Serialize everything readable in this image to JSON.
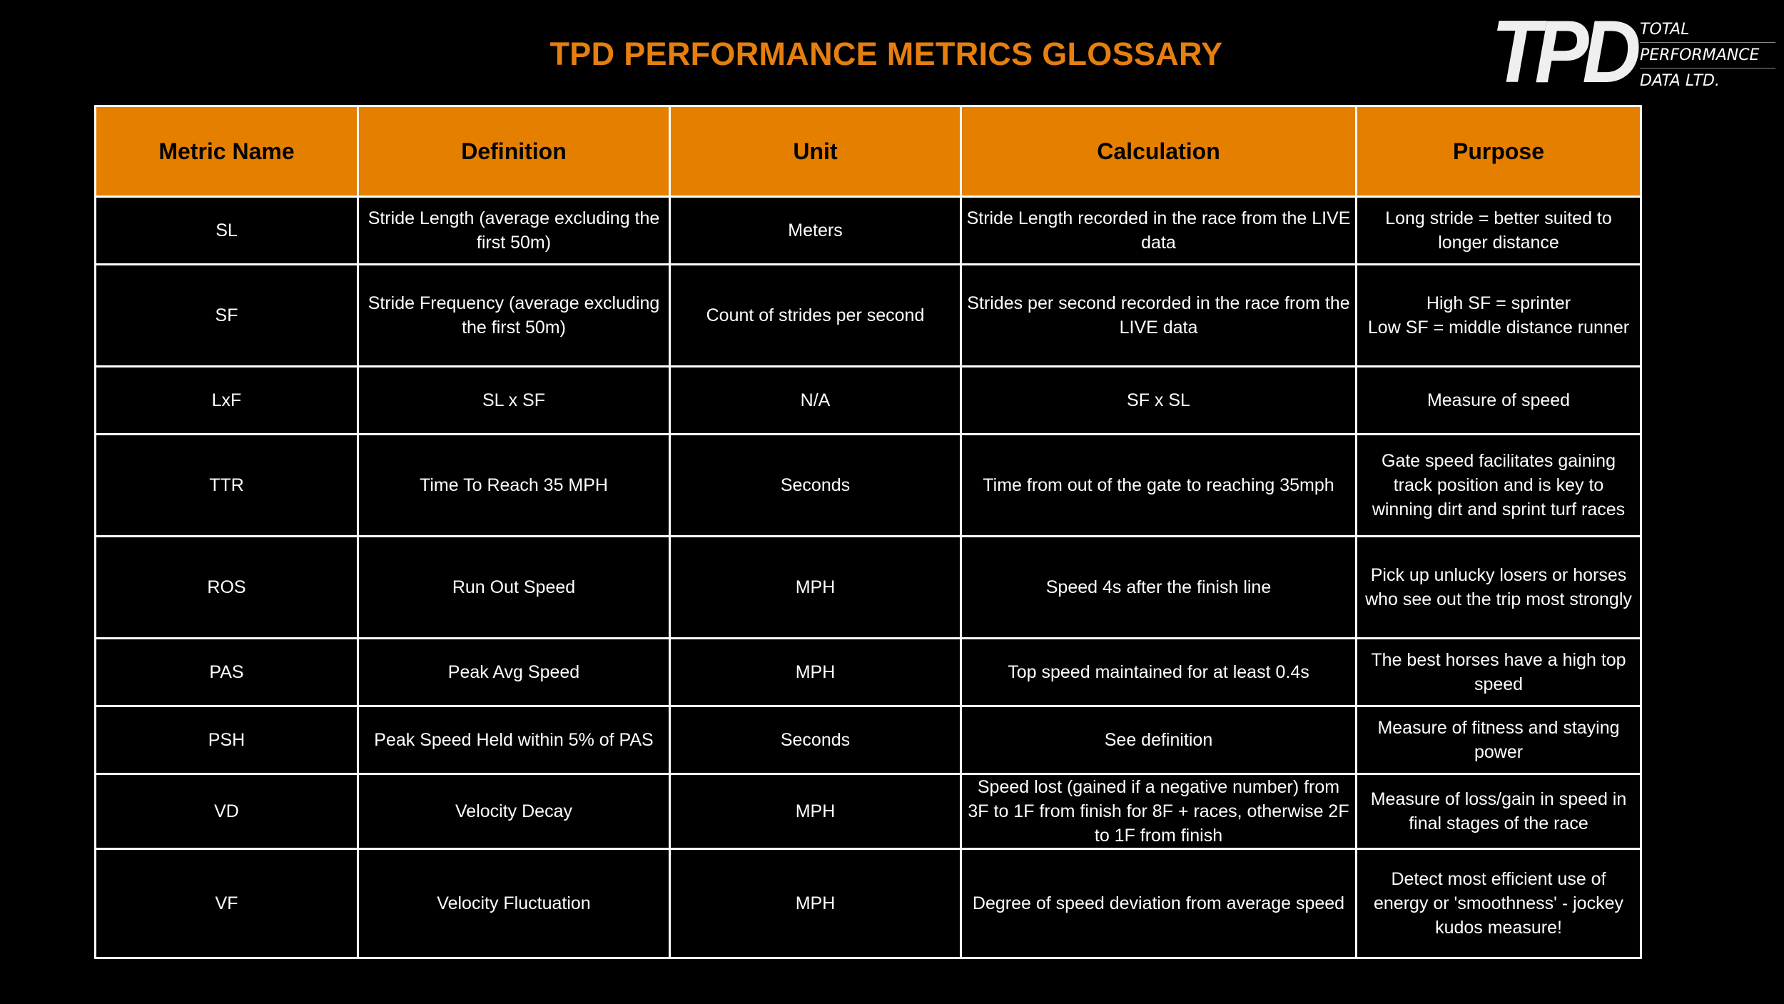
{
  "title": "TPD PERFORMANCE METRICS GLOSSARY",
  "logo": {
    "mark": "TPD",
    "lines": [
      "TOTAL",
      "PERFORMANCE",
      "DATA LTD."
    ]
  },
  "colors": {
    "accent": "#e57f00",
    "title": "#e57f10",
    "background": "#000000",
    "text": "#ffffff"
  },
  "table": {
    "headers": [
      "Metric Name",
      "Definition",
      "Unit",
      "Calculation",
      "Purpose"
    ],
    "rows": [
      {
        "metric": "SL",
        "definition": "Stride Length (average excluding the first 50m)",
        "unit": "Meters",
        "calculation": "Stride Length recorded in the race from the LIVE data",
        "purpose": [
          "Long stride = better suited to longer distance"
        ]
      },
      {
        "metric": "SF",
        "definition": "Stride Frequency (average excluding the first 50m)",
        "unit": "Count of strides per second",
        "calculation": "Strides per second recorded in the race from the LIVE data",
        "purpose": [
          "High SF = sprinter",
          "Low SF = middle distance runner"
        ]
      },
      {
        "metric": "LxF",
        "definition": "SL x SF",
        "unit": "N/A",
        "calculation": "SF x SL",
        "purpose": [
          "Measure of speed"
        ]
      },
      {
        "metric": "TTR",
        "definition": "Time To Reach 35 MPH",
        "unit": "Seconds",
        "calculation": "Time from out of the gate to reaching 35mph",
        "purpose": [
          "Gate speed facilitates gaining track position and is key to winning dirt and sprint turf races"
        ]
      },
      {
        "metric": "ROS",
        "definition": "Run Out Speed",
        "unit": "MPH",
        "calculation": "Speed 4s after the finish line",
        "purpose": [
          "Pick up unlucky losers or horses who see out the trip most strongly"
        ]
      },
      {
        "metric": "PAS",
        "definition": "Peak Avg Speed",
        "unit": "MPH",
        "calculation": "Top speed maintained for at least 0.4s",
        "purpose": [
          "The best horses have a high top speed"
        ]
      },
      {
        "metric": "PSH",
        "definition": "Peak Speed Held within 5% of PAS",
        "unit": "Seconds",
        "calculation": "See definition",
        "purpose": [
          "Measure of fitness and staying power"
        ]
      },
      {
        "metric": "VD",
        "definition": "Velocity Decay",
        "unit": "MPH",
        "calculation": "Speed lost (gained if a negative number) from 3F to 1F from finish for 8F + races, otherwise 2F to 1F from finish",
        "purpose": [
          "Measure of loss/gain in speed in final stages of the race"
        ]
      },
      {
        "metric": "VF",
        "definition": "Velocity Fluctuation",
        "unit": "MPH",
        "calculation": "Degree of speed deviation from average speed",
        "purpose": [
          "Detect most efficient use of energy or 'smoothness' - jockey kudos measure!"
        ]
      }
    ]
  }
}
